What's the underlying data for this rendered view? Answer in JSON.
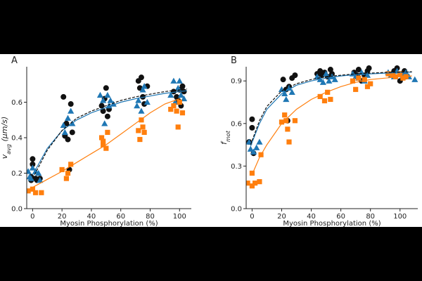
{
  "colors": {
    "black": "#111111",
    "blue": "#1f77b4",
    "orange": "#ff7f0e"
  },
  "chart_data": [
    {
      "panel_label": "A",
      "type": "scatter",
      "xlabel": "Myosin Phosphorylation (%)",
      "ylabel_main": "v",
      "ylabel_sub": "avg",
      "ylabel_unit": " (μm/s)",
      "xlim": [
        -4,
        108
      ],
      "ylim": [
        0,
        0.8
      ],
      "xticks": [
        0,
        20,
        40,
        60,
        80,
        100
      ],
      "yticks": [
        0.0,
        0.2,
        0.4,
        0.6
      ],
      "ytick_labels": [
        "0.0",
        "0.2",
        "0.4",
        "0.6"
      ],
      "grid": false,
      "series": [
        {
          "color": "black",
          "marker": "circle",
          "fit_style": "dashed",
          "fit": {
            "x": [
              0,
              10,
              20,
              30,
              40,
              50,
              60,
              70,
              80,
              90,
              100,
              105
            ],
            "y": [
              0.17,
              0.33,
              0.44,
              0.51,
              0.55,
              0.58,
              0.61,
              0.63,
              0.645,
              0.66,
              0.67,
              0.675
            ]
          },
          "points": [
            [
              -1,
              0.16
            ],
            [
              -1,
              0.18
            ],
            [
              0,
              0.28
            ],
            [
              0,
              0.25
            ],
            [
              2,
              0.17
            ],
            [
              3,
              0.16
            ],
            [
              5,
              0.17
            ],
            [
              21,
              0.63
            ],
            [
              22,
              0.41
            ],
            [
              23,
              0.48
            ],
            [
              24,
              0.39
            ],
            [
              25,
              0.22
            ],
            [
              26,
              0.59
            ],
            [
              27,
              0.43
            ],
            [
              47,
              0.58
            ],
            [
              48,
              0.55
            ],
            [
              49,
              0.62
            ],
            [
              50,
              0.68
            ],
            [
              51,
              0.52
            ],
            [
              52,
              0.56
            ],
            [
              72,
              0.72
            ],
            [
              73,
              0.68
            ],
            [
              74,
              0.74
            ],
            [
              75,
              0.63
            ],
            [
              76,
              0.59
            ],
            [
              78,
              0.69
            ],
            [
              96,
              0.66
            ],
            [
              98,
              0.63
            ],
            [
              99,
              0.61
            ],
            [
              100,
              0.67
            ],
            [
              101,
              0.58
            ],
            [
              102,
              0.69
            ],
            [
              103,
              0.66
            ]
          ]
        },
        {
          "color": "blue",
          "marker": "triangle",
          "fit_style": "solid",
          "fit": {
            "x": [
              0,
              10,
              20,
              30,
              40,
              50,
              60,
              70,
              80,
              90,
              100,
              105
            ],
            "y": [
              0.19,
              0.34,
              0.44,
              0.5,
              0.54,
              0.57,
              0.6,
              0.62,
              0.635,
              0.65,
              0.66,
              0.665
            ]
          },
          "points": [
            [
              -3,
              0.21
            ],
            [
              -2,
              0.18
            ],
            [
              -1,
              0.17
            ],
            [
              0,
              0.23
            ],
            [
              2,
              0.21
            ],
            [
              4,
              0.2
            ],
            [
              5,
              0.16
            ],
            [
              21,
              0.47
            ],
            [
              22,
              0.43
            ],
            [
              24,
              0.51
            ],
            [
              26,
              0.55
            ],
            [
              27,
              0.48
            ],
            [
              46,
              0.64
            ],
            [
              48,
              0.61
            ],
            [
              49,
              0.48
            ],
            [
              51,
              0.64
            ],
            [
              52,
              0.58
            ],
            [
              53,
              0.61
            ],
            [
              55,
              0.59
            ],
            [
              71,
              0.58
            ],
            [
              72,
              0.61
            ],
            [
              74,
              0.55
            ],
            [
              75,
              0.67
            ],
            [
              76,
              0.69
            ],
            [
              78,
              0.6
            ],
            [
              94,
              0.64
            ],
            [
              96,
              0.72
            ],
            [
              97,
              0.6
            ],
            [
              99,
              0.68
            ],
            [
              100,
              0.72
            ],
            [
              101,
              0.64
            ],
            [
              103,
              0.62
            ]
          ]
        },
        {
          "color": "orange",
          "marker": "square",
          "fit_style": "solid",
          "fit": {
            "x": [
              0,
              10,
              20,
              30,
              40,
              50,
              60,
              70,
              80,
              90,
              100
            ],
            "y": [
              0.12,
              0.165,
              0.21,
              0.26,
              0.31,
              0.36,
              0.42,
              0.48,
              0.54,
              0.59,
              0.62
            ]
          },
          "points": [
            [
              -3,
              0.1
            ],
            [
              0,
              0.11
            ],
            [
              2,
              0.09
            ],
            [
              6,
              0.09
            ],
            [
              20,
              0.22
            ],
            [
              23,
              0.17
            ],
            [
              24,
              0.2
            ],
            [
              26,
              0.25
            ],
            [
              47,
              0.4
            ],
            [
              48,
              0.36
            ],
            [
              48,
              0.38
            ],
            [
              50,
              0.34
            ],
            [
              51,
              0.43
            ],
            [
              72,
              0.44
            ],
            [
              73,
              0.39
            ],
            [
              74,
              0.5
            ],
            [
              75,
              0.46
            ],
            [
              76,
              0.43
            ],
            [
              94,
              0.56
            ],
            [
              96,
              0.58
            ],
            [
              98,
              0.55
            ],
            [
              99,
              0.46
            ],
            [
              100,
              0.6
            ],
            [
              102,
              0.54
            ]
          ]
        }
      ]
    },
    {
      "panel_label": "B",
      "type": "scatter",
      "xlabel": "Myosin Phosphorylation (%)",
      "ylabel_main": "f",
      "ylabel_sub": "mot",
      "ylabel_unit": "",
      "xlim": [
        -4,
        112
      ],
      "ylim": [
        0,
        1.0
      ],
      "xticks": [
        0,
        20,
        40,
        60,
        80,
        100
      ],
      "yticks": [
        0.0,
        0.3,
        0.6,
        0.9
      ],
      "ytick_labels": [
        "0.0",
        "0.3",
        "0.6",
        "0.9"
      ],
      "grid": false,
      "series": [
        {
          "color": "black",
          "marker": "circle",
          "fit_style": "dashed",
          "fit": {
            "x": [
              -1,
              5,
              10,
              20,
              30,
              40,
              50,
              60,
              70,
              80,
              90,
              100,
              108
            ],
            "y": [
              0.45,
              0.62,
              0.72,
              0.83,
              0.88,
              0.91,
              0.93,
              0.94,
              0.95,
              0.955,
              0.96,
              0.962,
              0.965
            ]
          },
          "points": [
            [
              -2,
              0.47
            ],
            [
              0,
              0.63
            ],
            [
              0,
              0.57
            ],
            [
              1,
              0.39
            ],
            [
              21,
              0.91
            ],
            [
              23,
              0.84
            ],
            [
              24,
              0.62
            ],
            [
              25,
              0.86
            ],
            [
              27,
              0.92
            ],
            [
              29,
              0.94
            ],
            [
              44,
              0.95
            ],
            [
              46,
              0.97
            ],
            [
              47,
              0.94
            ],
            [
              49,
              0.96
            ],
            [
              51,
              0.93
            ],
            [
              53,
              0.98
            ],
            [
              54,
              0.95
            ],
            [
              69,
              0.96
            ],
            [
              71,
              0.94
            ],
            [
              72,
              0.98
            ],
            [
              74,
              0.9
            ],
            [
              76,
              0.94
            ],
            [
              78,
              0.97
            ],
            [
              79,
              0.99
            ],
            [
              95,
              0.95
            ],
            [
              96,
              0.97
            ],
            [
              98,
              0.99
            ],
            [
              100,
              0.9
            ],
            [
              101,
              0.95
            ],
            [
              103,
              0.97
            ],
            [
              104,
              0.93
            ]
          ]
        },
        {
          "color": "blue",
          "marker": "triangle",
          "fit_style": "solid",
          "fit": {
            "x": [
              -1,
              5,
              10,
              20,
              30,
              40,
              50,
              60,
              70,
              80,
              90,
              100,
              108
            ],
            "y": [
              0.44,
              0.6,
              0.7,
              0.81,
              0.87,
              0.9,
              0.92,
              0.935,
              0.945,
              0.95,
              0.955,
              0.96,
              0.962
            ]
          },
          "points": [
            [
              -2,
              0.47
            ],
            [
              -1,
              0.42
            ],
            [
              1,
              0.4
            ],
            [
              3,
              0.43
            ],
            [
              5,
              0.47
            ],
            [
              20,
              0.84
            ],
            [
              22,
              0.81
            ],
            [
              23,
              0.77
            ],
            [
              25,
              0.85
            ],
            [
              27,
              0.82
            ],
            [
              44,
              0.93
            ],
            [
              46,
              0.91
            ],
            [
              48,
              0.89
            ],
            [
              50,
              0.95
            ],
            [
              52,
              0.9
            ],
            [
              54,
              0.93
            ],
            [
              56,
              0.91
            ],
            [
              68,
              0.95
            ],
            [
              70,
              0.93
            ],
            [
              72,
              0.92
            ],
            [
              74,
              0.96
            ],
            [
              76,
              0.9
            ],
            [
              78,
              0.94
            ],
            [
              92,
              0.96
            ],
            [
              94,
              0.94
            ],
            [
              96,
              0.93
            ],
            [
              98,
              0.97
            ],
            [
              100,
              0.95
            ],
            [
              102,
              0.94
            ],
            [
              104,
              0.96
            ],
            [
              106,
              0.93
            ],
            [
              110,
              0.91
            ]
          ]
        },
        {
          "color": "orange",
          "marker": "square",
          "fit_style": "solid",
          "fit": {
            "x": [
              0,
              5,
              10,
              20,
              30,
              40,
              50,
              60,
              70,
              80,
              90,
              100,
              108
            ],
            "y": [
              0.24,
              0.36,
              0.45,
              0.6,
              0.7,
              0.77,
              0.82,
              0.86,
              0.89,
              0.91,
              0.92,
              0.93,
              0.935
            ]
          },
          "points": [
            [
              -3,
              0.18
            ],
            [
              0,
              0.25
            ],
            [
              0,
              0.16
            ],
            [
              2,
              0.18
            ],
            [
              5,
              0.19
            ],
            [
              6,
              0.38
            ],
            [
              20,
              0.61
            ],
            [
              22,
              0.66
            ],
            [
              23,
              0.62
            ],
            [
              24,
              0.56
            ],
            [
              25,
              0.47
            ],
            [
              29,
              0.62
            ],
            [
              46,
              0.79
            ],
            [
              49,
              0.76
            ],
            [
              51,
              0.82
            ],
            [
              53,
              0.77
            ],
            [
              68,
              0.9
            ],
            [
              70,
              0.84
            ],
            [
              72,
              0.92
            ],
            [
              76,
              0.91
            ],
            [
              78,
              0.86
            ],
            [
              80,
              0.88
            ],
            [
              92,
              0.95
            ],
            [
              95,
              0.94
            ],
            [
              97,
              0.93
            ],
            [
              100,
              0.95
            ],
            [
              102,
              0.92
            ],
            [
              104,
              0.93
            ]
          ]
        }
      ]
    }
  ]
}
